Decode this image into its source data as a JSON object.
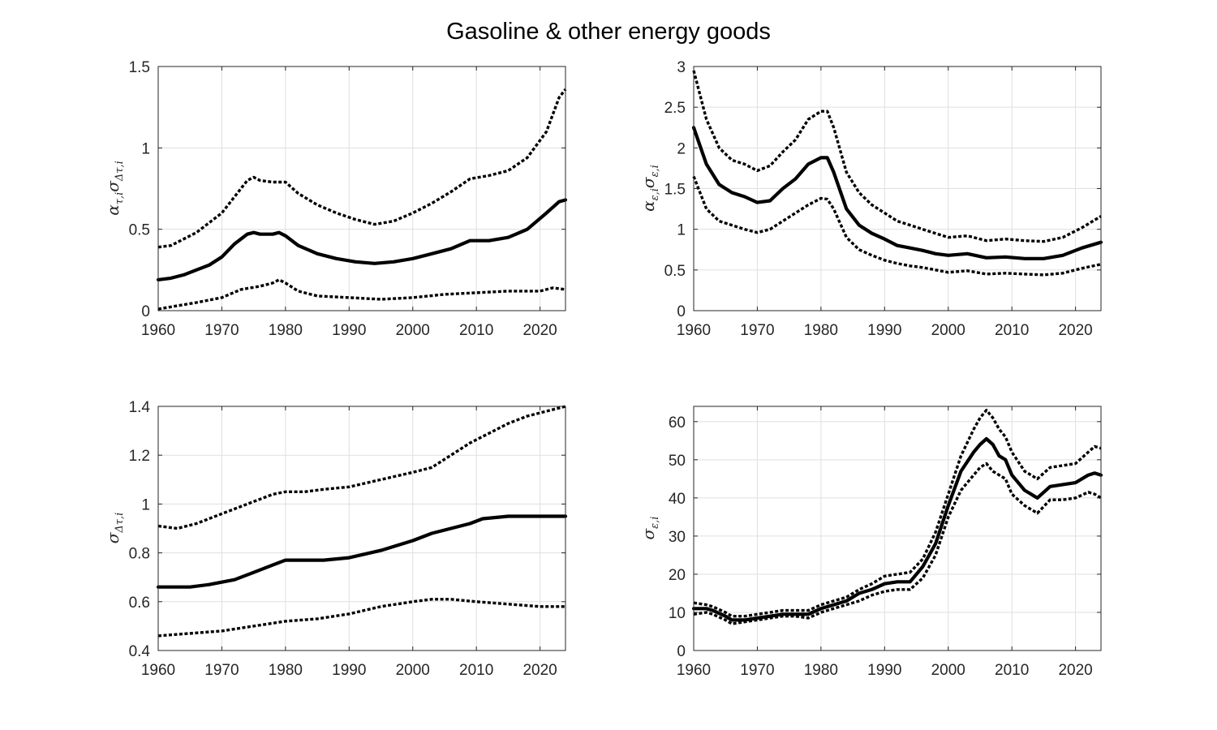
{
  "figure": {
    "title": "Gasoline & other energy goods"
  },
  "chart_data": [
    {
      "type": "line",
      "ylabel": {
        "main": "α",
        "sub1": "τ,i",
        "mid": "σ",
        "sub2": "Δτ,i"
      },
      "xlim": [
        1960,
        2024
      ],
      "ylim": [
        0,
        1.5
      ],
      "xticks": [
        1960,
        1970,
        1980,
        1990,
        2000,
        2010,
        2020
      ],
      "yticks": [
        0,
        0.5,
        1,
        1.5
      ],
      "ytick_labels": [
        "0",
        "0.5",
        "1",
        "1.5"
      ],
      "grid": true,
      "series": [
        {
          "style": "solid",
          "x": [
            1960,
            1962,
            1964,
            1966,
            1968,
            1970,
            1972,
            1974,
            1975,
            1976,
            1978,
            1979,
            1980,
            1982,
            1985,
            1988,
            1991,
            1994,
            1997,
            2000,
            2003,
            2006,
            2009,
            2012,
            2015,
            2018,
            2021,
            2023,
            2024
          ],
          "y": [
            0.19,
            0.2,
            0.22,
            0.25,
            0.28,
            0.33,
            0.41,
            0.47,
            0.48,
            0.47,
            0.47,
            0.48,
            0.46,
            0.4,
            0.35,
            0.32,
            0.3,
            0.29,
            0.3,
            0.32,
            0.35,
            0.38,
            0.43,
            0.43,
            0.45,
            0.5,
            0.6,
            0.67,
            0.68
          ]
        },
        {
          "style": "dotted",
          "x": [
            1960,
            1962,
            1964,
            1966,
            1968,
            1970,
            1972,
            1974,
            1975,
            1976,
            1978,
            1980,
            1982,
            1985,
            1988,
            1991,
            1994,
            1997,
            2000,
            2003,
            2006,
            2009,
            2012,
            2015,
            2018,
            2021,
            2023,
            2024
          ],
          "y": [
            0.39,
            0.4,
            0.44,
            0.48,
            0.54,
            0.6,
            0.7,
            0.8,
            0.82,
            0.8,
            0.79,
            0.79,
            0.72,
            0.65,
            0.6,
            0.56,
            0.53,
            0.55,
            0.6,
            0.66,
            0.73,
            0.81,
            0.83,
            0.86,
            0.94,
            1.1,
            1.31,
            1.36
          ]
        },
        {
          "style": "dotted",
          "x": [
            1960,
            1963,
            1966,
            1970,
            1973,
            1976,
            1978,
            1979,
            1980,
            1982,
            1985,
            1990,
            1995,
            2000,
            2005,
            2010,
            2015,
            2020,
            2022,
            2024
          ],
          "y": [
            0.01,
            0.03,
            0.05,
            0.08,
            0.13,
            0.15,
            0.17,
            0.19,
            0.17,
            0.12,
            0.09,
            0.08,
            0.07,
            0.08,
            0.1,
            0.11,
            0.12,
            0.12,
            0.14,
            0.13
          ]
        }
      ]
    },
    {
      "type": "line",
      "ylabel": {
        "main": "α",
        "sub1": "ε,i",
        "mid": "σ",
        "sub2": "ε,i"
      },
      "xlim": [
        1960,
        2024
      ],
      "ylim": [
        0,
        3
      ],
      "xticks": [
        1960,
        1970,
        1980,
        1990,
        2000,
        2010,
        2020
      ],
      "yticks": [
        0,
        0.5,
        1,
        1.5,
        2,
        2.5,
        3
      ],
      "ytick_labels": [
        "0",
        "0.5",
        "1",
        "1.5",
        "2",
        "2.5",
        "3"
      ],
      "grid": true,
      "series": [
        {
          "style": "solid",
          "x": [
            1960,
            1962,
            1964,
            1966,
            1968,
            1970,
            1972,
            1974,
            1976,
            1978,
            1980,
            1981,
            1982,
            1984,
            1986,
            1988,
            1990,
            1992,
            1994,
            1996,
            1998,
            2000,
            2003,
            2006,
            2009,
            2012,
            2015,
            2018,
            2021,
            2024
          ],
          "y": [
            2.25,
            1.8,
            1.55,
            1.45,
            1.4,
            1.33,
            1.35,
            1.5,
            1.62,
            1.8,
            1.88,
            1.88,
            1.7,
            1.25,
            1.05,
            0.95,
            0.88,
            0.8,
            0.77,
            0.74,
            0.7,
            0.68,
            0.7,
            0.65,
            0.66,
            0.64,
            0.64,
            0.68,
            0.77,
            0.84
          ]
        },
        {
          "style": "dotted",
          "x": [
            1960,
            1962,
            1964,
            1966,
            1968,
            1970,
            1972,
            1974,
            1976,
            1978,
            1980,
            1981,
            1982,
            1984,
            1986,
            1988,
            1990,
            1992,
            1994,
            1996,
            1998,
            2000,
            2003,
            2006,
            2009,
            2012,
            2015,
            2018,
            2021,
            2024
          ],
          "y": [
            2.95,
            2.35,
            2.0,
            1.85,
            1.8,
            1.72,
            1.78,
            1.95,
            2.1,
            2.35,
            2.45,
            2.45,
            2.25,
            1.7,
            1.45,
            1.3,
            1.2,
            1.1,
            1.05,
            1.0,
            0.95,
            0.9,
            0.92,
            0.86,
            0.88,
            0.86,
            0.85,
            0.9,
            1.02,
            1.16
          ]
        },
        {
          "style": "dotted",
          "x": [
            1960,
            1962,
            1964,
            1966,
            1968,
            1970,
            1972,
            1974,
            1976,
            1978,
            1980,
            1981,
            1982,
            1984,
            1986,
            1988,
            1990,
            1992,
            1994,
            1996,
            1998,
            2000,
            2003,
            2006,
            2009,
            2012,
            2015,
            2018,
            2021,
            2024
          ],
          "y": [
            1.65,
            1.25,
            1.1,
            1.05,
            1.0,
            0.96,
            1.0,
            1.1,
            1.2,
            1.3,
            1.38,
            1.37,
            1.25,
            0.9,
            0.75,
            0.68,
            0.62,
            0.58,
            0.55,
            0.53,
            0.5,
            0.47,
            0.49,
            0.45,
            0.46,
            0.45,
            0.44,
            0.46,
            0.52,
            0.57
          ]
        }
      ]
    },
    {
      "type": "line",
      "ylabel": {
        "main": "σ",
        "sub1": "Δτ,i",
        "mid": "",
        "sub2": ""
      },
      "xlim": [
        1960,
        2024
      ],
      "ylim": [
        0.4,
        1.4
      ],
      "xticks": [
        1960,
        1970,
        1980,
        1990,
        2000,
        2010,
        2020
      ],
      "yticks": [
        0.4,
        0.6,
        0.8,
        1,
        1.2,
        1.4
      ],
      "ytick_labels": [
        "0.4",
        "0.6",
        "0.8",
        "1",
        "1.2",
        "1.4"
      ],
      "grid": true,
      "series": [
        {
          "style": "solid",
          "x": [
            1960,
            1965,
            1968,
            1970,
            1972,
            1975,
            1978,
            1980,
            1983,
            1986,
            1990,
            1995,
            2000,
            2003,
            2006,
            2009,
            2011,
            2015,
            2020,
            2024
          ],
          "y": [
            0.66,
            0.66,
            0.67,
            0.68,
            0.69,
            0.72,
            0.75,
            0.77,
            0.77,
            0.77,
            0.78,
            0.81,
            0.85,
            0.88,
            0.9,
            0.92,
            0.94,
            0.95,
            0.95,
            0.95
          ]
        },
        {
          "style": "dotted",
          "x": [
            1960,
            1963,
            1966,
            1970,
            1973,
            1976,
            1978,
            1980,
            1983,
            1986,
            1990,
            1995,
            2000,
            2003,
            2006,
            2009,
            2012,
            2015,
            2018,
            2021,
            2024
          ],
          "y": [
            0.91,
            0.9,
            0.92,
            0.96,
            0.99,
            1.02,
            1.04,
            1.05,
            1.05,
            1.06,
            1.07,
            1.1,
            1.13,
            1.15,
            1.2,
            1.25,
            1.29,
            1.33,
            1.36,
            1.38,
            1.4
          ]
        },
        {
          "style": "dotted",
          "x": [
            1960,
            1965,
            1970,
            1975,
            1980,
            1985,
            1990,
            1995,
            2000,
            2003,
            2006,
            2010,
            2015,
            2020,
            2024
          ],
          "y": [
            0.46,
            0.47,
            0.48,
            0.5,
            0.52,
            0.53,
            0.55,
            0.58,
            0.6,
            0.61,
            0.61,
            0.6,
            0.59,
            0.58,
            0.58
          ]
        }
      ]
    },
    {
      "type": "line",
      "ylabel": {
        "main": "σ",
        "sub1": "ε,i",
        "mid": "",
        "sub2": ""
      },
      "xlim": [
        1960,
        2024
      ],
      "ylim": [
        0,
        64
      ],
      "xticks": [
        1960,
        1970,
        1980,
        1990,
        2000,
        2010,
        2020
      ],
      "yticks": [
        0,
        10,
        20,
        30,
        40,
        50,
        60
      ],
      "ytick_labels": [
        "0",
        "10",
        "20",
        "30",
        "40",
        "50",
        "60"
      ],
      "grid": true,
      "series": [
        {
          "style": "solid",
          "x": [
            1960,
            1962,
            1963,
            1965,
            1966,
            1968,
            1970,
            1972,
            1974,
            1976,
            1978,
            1980,
            1982,
            1984,
            1986,
            1988,
            1990,
            1992,
            1994,
            1996,
            1998,
            2000,
            2002,
            2004,
            2005,
            2006,
            2007,
            2008,
            2009,
            2010,
            2012,
            2014,
            2016,
            2018,
            2020,
            2022,
            2023,
            2024
          ],
          "y": [
            11,
            11,
            10.5,
            9,
            8,
            8,
            8.5,
            9,
            9.5,
            9.5,
            9.5,
            11,
            12,
            13,
            15,
            16,
            17.5,
            18,
            18,
            22,
            28,
            38,
            47,
            52,
            54,
            55.5,
            54,
            51,
            50,
            46,
            42,
            40,
            43,
            43.5,
            44,
            46,
            46.5,
            46
          ]
        },
        {
          "style": "dotted",
          "x": [
            1960,
            1962,
            1963,
            1965,
            1966,
            1968,
            1970,
            1972,
            1974,
            1976,
            1978,
            1980,
            1982,
            1984,
            1986,
            1988,
            1990,
            1992,
            1994,
            1996,
            1998,
            2000,
            2002,
            2004,
            2005,
            2006,
            2007,
            2008,
            2009,
            2010,
            2012,
            2014,
            2016,
            2018,
            2020,
            2022,
            2023,
            2024
          ],
          "y": [
            12.5,
            12,
            11.5,
            10,
            9,
            9,
            9.5,
            10,
            10.5,
            10.5,
            10.5,
            12,
            13,
            14,
            16,
            17.5,
            19.5,
            20,
            20.5,
            24,
            31,
            41,
            51,
            58,
            61,
            63,
            61,
            58,
            56,
            52,
            47,
            45,
            48,
            48.5,
            49,
            52,
            53.5,
            53
          ]
        },
        {
          "style": "dotted",
          "x": [
            1960,
            1962,
            1963,
            1965,
            1966,
            1968,
            1970,
            1972,
            1974,
            1976,
            1978,
            1980,
            1982,
            1984,
            1986,
            1988,
            1990,
            1992,
            1994,
            1996,
            1998,
            2000,
            2002,
            2004,
            2005,
            2006,
            2007,
            2008,
            2009,
            2010,
            2012,
            2014,
            2016,
            2018,
            2020,
            2022,
            2023,
            2024
          ],
          "y": [
            9.5,
            10,
            9.5,
            8,
            7,
            7.5,
            8,
            8.5,
            9,
            9,
            8.5,
            10,
            11,
            12,
            13,
            14.5,
            15.5,
            16,
            16,
            19,
            25,
            35,
            42,
            46,
            48,
            49,
            47,
            46,
            45,
            41,
            38,
            36,
            39.5,
            39.5,
            40,
            41.5,
            41,
            40
          ]
        }
      ]
    }
  ]
}
